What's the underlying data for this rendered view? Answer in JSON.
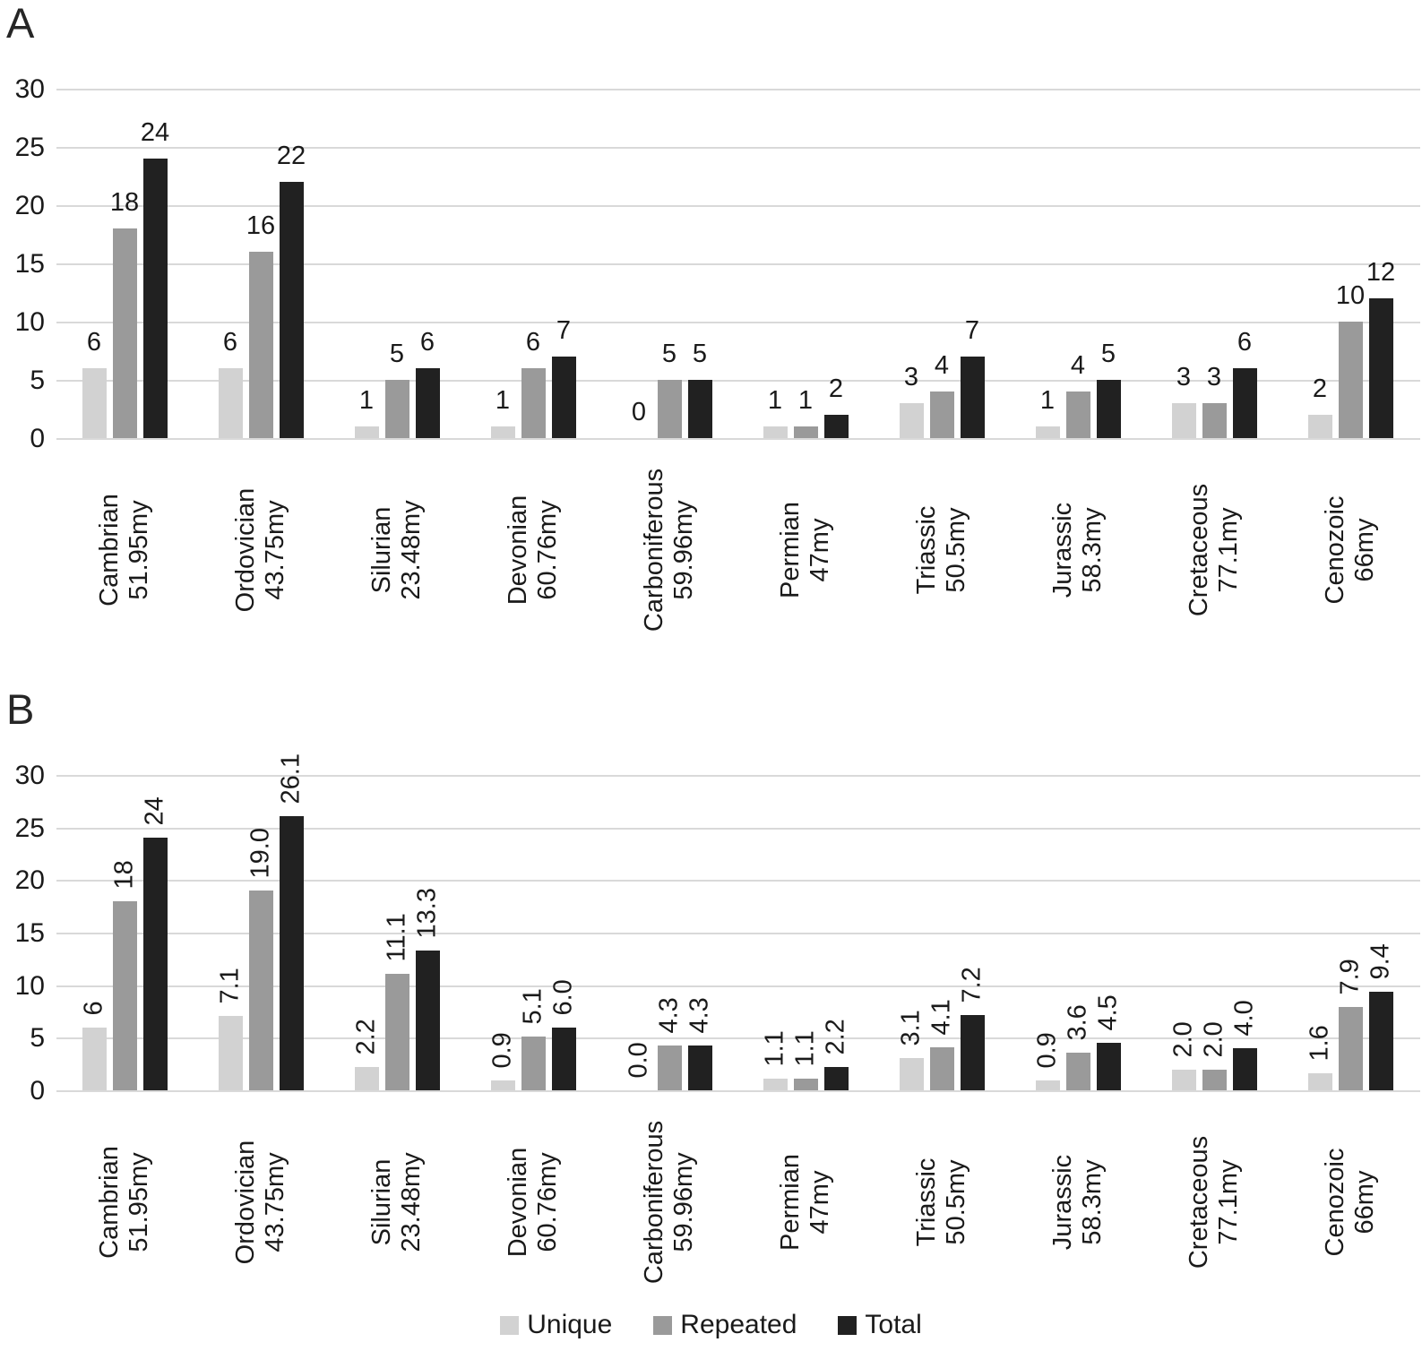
{
  "page": {
    "background": "#ffffff"
  },
  "colors": {
    "unique": "#d2d2d2",
    "repeated": "#9a9a9a",
    "total": "#212121",
    "gridline": "#d9d9d9",
    "text": "#1a1a1a"
  },
  "panels": [
    {
      "label": "A",
      "chart_data": {
        "type": "bar",
        "title": "",
        "xlabel": "",
        "ylabel": "",
        "ylim": [
          0,
          30
        ],
        "yticks": [
          0,
          5,
          10,
          15,
          20,
          25,
          30
        ],
        "grid": true,
        "value_label_rotation": "horizontal",
        "categories": [
          {
            "name": "Cambrian",
            "duration": "51.95my"
          },
          {
            "name": "Ordovician",
            "duration": "43.75my"
          },
          {
            "name": "Silurian",
            "duration": "23.48my"
          },
          {
            "name": "Devonian",
            "duration": "60.76my"
          },
          {
            "name": "Carboniferous",
            "duration": "59.96my"
          },
          {
            "name": "Permian",
            "duration": "47my"
          },
          {
            "name": "Triassic",
            "duration": "50.5my"
          },
          {
            "name": "Jurassic",
            "duration": "58.3my"
          },
          {
            "name": "Cretaceous",
            "duration": "77.1my"
          },
          {
            "name": "Cenozoic",
            "duration": "66my"
          }
        ],
        "series": [
          {
            "name": "Unique",
            "color": "#d2d2d2",
            "values": [
              6,
              6,
              1,
              1,
              0,
              1,
              3,
              1,
              3,
              2
            ],
            "labels": [
              "6",
              "6",
              "1",
              "1",
              "0",
              "1",
              "3",
              "1",
              "3",
              "2"
            ]
          },
          {
            "name": "Repeated",
            "color": "#9a9a9a",
            "values": [
              18,
              16,
              5,
              6,
              5,
              1,
              4,
              4,
              3,
              10
            ],
            "labels": [
              "18",
              "16",
              "5",
              "6",
              "5",
              "1",
              "4",
              "4",
              "3",
              "10"
            ]
          },
          {
            "name": "Total",
            "color": "#212121",
            "values": [
              24,
              22,
              6,
              7,
              5,
              2,
              7,
              5,
              6,
              12
            ],
            "labels": [
              "24",
              "22",
              "6",
              "7",
              "5",
              "2",
              "7",
              "5",
              "6",
              "12"
            ]
          }
        ]
      }
    },
    {
      "label": "B",
      "chart_data": {
        "type": "bar",
        "title": "",
        "xlabel": "",
        "ylabel": "",
        "ylim": [
          0,
          30
        ],
        "yticks": [
          0,
          5,
          10,
          15,
          20,
          25,
          30
        ],
        "grid": true,
        "value_label_rotation": "vertical",
        "categories": [
          {
            "name": "Cambrian",
            "duration": "51.95my"
          },
          {
            "name": "Ordovician",
            "duration": "43.75my"
          },
          {
            "name": "Silurian",
            "duration": "23.48my"
          },
          {
            "name": "Devonian",
            "duration": "60.76my"
          },
          {
            "name": "Carboniferous",
            "duration": "59.96my"
          },
          {
            "name": "Permian",
            "duration": "47my"
          },
          {
            "name": "Triassic",
            "duration": "50.5my"
          },
          {
            "name": "Jurassic",
            "duration": "58.3my"
          },
          {
            "name": "Cretaceous",
            "duration": "77.1my"
          },
          {
            "name": "Cenozoic",
            "duration": "66my"
          }
        ],
        "series": [
          {
            "name": "Unique",
            "color": "#d2d2d2",
            "values": [
              6,
              7.1,
              2.2,
              0.9,
              0,
              1.1,
              3.1,
              0.9,
              2.0,
              1.6
            ],
            "labels": [
              "6",
              "7.1",
              "2.2",
              "0.9",
              "0.0",
              "1.1",
              "3.1",
              "0.9",
              "2.0",
              "1.6"
            ]
          },
          {
            "name": "Repeated",
            "color": "#9a9a9a",
            "values": [
              18,
              19.0,
              11.1,
              5.1,
              4.3,
              1.1,
              4.1,
              3.6,
              2.0,
              7.9
            ],
            "labels": [
              "18",
              "19.0",
              "11.1",
              "5.1",
              "4.3",
              "1.1",
              "4.1",
              "3.6",
              "2.0",
              "7.9"
            ]
          },
          {
            "name": "Total",
            "color": "#212121",
            "values": [
              24,
              26.1,
              13.3,
              6.0,
              4.3,
              2.2,
              7.2,
              4.5,
              4.0,
              9.4
            ],
            "labels": [
              "24",
              "26.1",
              "13.3",
              "6.0",
              "4.3",
              "2.2",
              "7.2",
              "4.5",
              "4.0",
              "9.4"
            ]
          }
        ]
      }
    }
  ],
  "legend": {
    "items": [
      {
        "label": "Unique",
        "color": "#d2d2d2"
      },
      {
        "label": "Repeated",
        "color": "#9a9a9a"
      },
      {
        "label": "Total",
        "color": "#212121"
      }
    ]
  }
}
